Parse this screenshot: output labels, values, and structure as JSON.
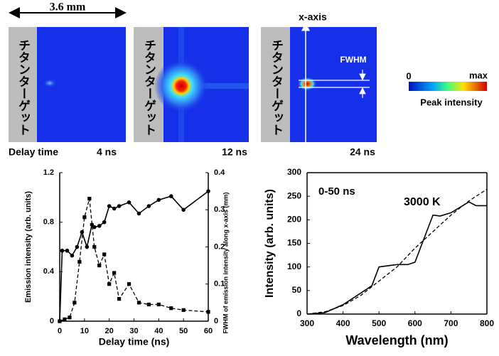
{
  "panels": {
    "scale_label": "3.6 mm",
    "delay_label": "Delay time",
    "x_axis_label": "x-axis",
    "fwhm_label": "FWHM",
    "images": [
      {
        "target": "チタンターゲット",
        "delay": "4 ns"
      },
      {
        "target": "チタンターゲット",
        "delay": "12 ns"
      },
      {
        "target": "チタンターゲット",
        "delay": "24 ns"
      }
    ],
    "colorbar": {
      "min": "0",
      "max": "max",
      "label": "Peak intensity"
    }
  },
  "chart_data": [
    {
      "type": "line",
      "xlabel": "Delay time (ns)",
      "ylabel": "Emission intensity (arb. units)",
      "y2label": "FWHM of emission intensity along x-axis (mm)",
      "xlim": [
        0,
        60
      ],
      "xticks": [
        0,
        10,
        20,
        30,
        40,
        50,
        60
      ],
      "ylim": [
        0,
        1.2
      ],
      "yticks": [
        0,
        0.4,
        0.8,
        1.2
      ],
      "y2lim": [
        0,
        0.4
      ],
      "y2ticks": [
        0,
        0.1,
        0.2,
        0.3,
        0.4
      ],
      "series": [
        {
          "color": "#000000",
          "marker": "circle",
          "dashed": false,
          "x": [
            0,
            1,
            3,
            5,
            7,
            9,
            11,
            13,
            14,
            16,
            18,
            20,
            22,
            24,
            28,
            32,
            36,
            40,
            45,
            50,
            60
          ],
          "values": [
            0,
            0.57,
            0.57,
            0.53,
            0.6,
            0.72,
            0.6,
            0.78,
            0.76,
            0.77,
            0.8,
            0.93,
            0.91,
            0.93,
            0.96,
            0.87,
            0.93,
            0.98,
            1.01,
            0.9,
            1.05
          ]
        },
        {
          "color": "#000000",
          "marker": "square",
          "dashed": true,
          "axis": "y2",
          "x": [
            0,
            2,
            4,
            6,
            8,
            10,
            12,
            14,
            16,
            18,
            20,
            22,
            24,
            28,
            32,
            36,
            40,
            45,
            50,
            60
          ],
          "values": [
            0,
            0.005,
            0.01,
            0.05,
            0.16,
            0.28,
            0.33,
            0.2,
            0.15,
            0.18,
            0.1,
            0.13,
            0.06,
            0.1,
            0.05,
            0.045,
            0.045,
            0.035,
            0.03,
            0.025
          ]
        }
      ]
    },
    {
      "type": "line",
      "xlabel": "Wavelength  (nm)",
      "ylabel": "Intensity (arb. units)",
      "annotations": [
        "0-50 ns",
        "3000 K"
      ],
      "xlim": [
        300,
        800
      ],
      "xticks": [
        300,
        400,
        500,
        600,
        700,
        800
      ],
      "ylim": [
        0,
        300
      ],
      "yticks": [
        0,
        50,
        100,
        150,
        200,
        250,
        300
      ],
      "series": [
        {
          "color": "#000000",
          "dashed": false,
          "x": [
            300,
            350,
            400,
            450,
            480,
            500,
            550,
            580,
            600,
            650,
            670,
            700,
            750,
            770,
            800
          ],
          "values": [
            0,
            3,
            20,
            45,
            60,
            100,
            105,
            105,
            110,
            210,
            208,
            215,
            238,
            230,
            230
          ]
        },
        {
          "color": "#000000",
          "dashed": true,
          "x": [
            300,
            350,
            400,
            450,
            500,
            550,
            600,
            650,
            700,
            750,
            800
          ],
          "values": [
            0,
            5,
            18,
            40,
            70,
            100,
            140,
            175,
            210,
            240,
            265
          ]
        }
      ]
    }
  ]
}
